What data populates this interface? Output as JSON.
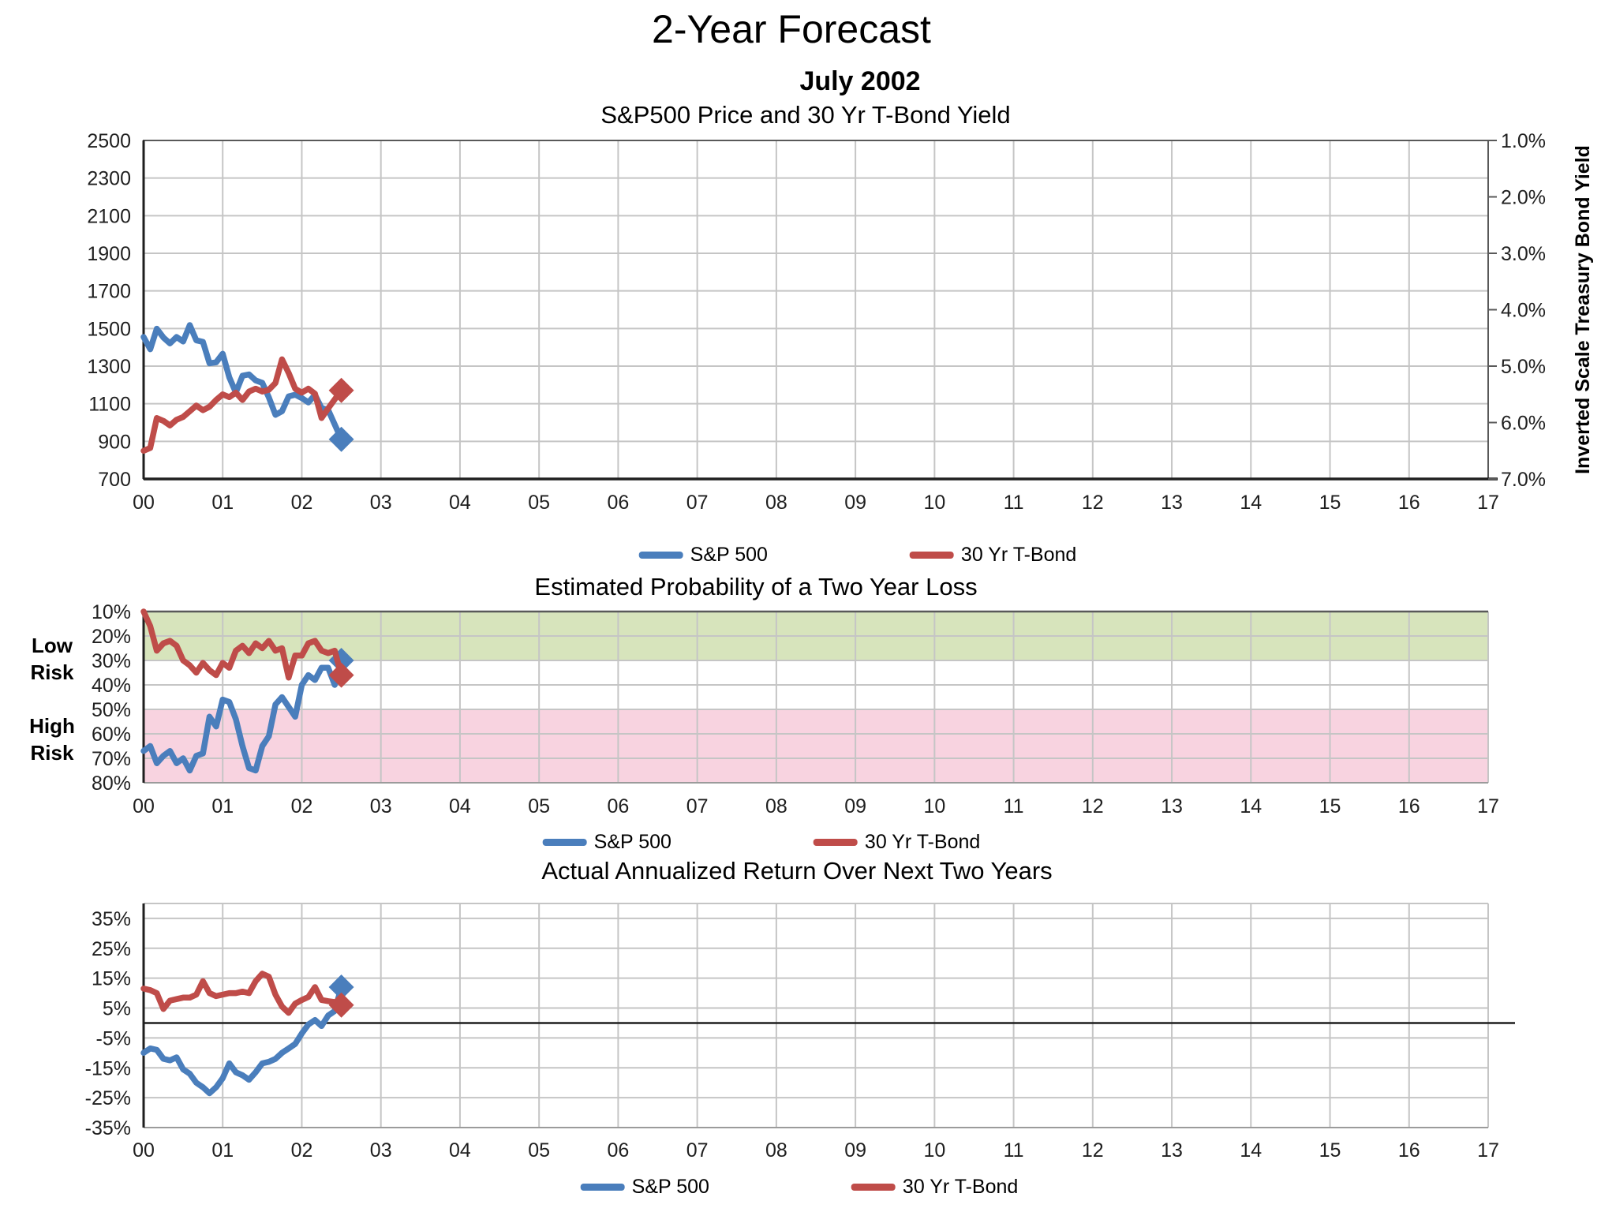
{
  "page": {
    "title": "2-Year Forecast",
    "subtitle": "July 2002"
  },
  "x_axis": {
    "labels": [
      "00",
      "01",
      "02",
      "03",
      "04",
      "05",
      "06",
      "07",
      "08",
      "09",
      "10",
      "11",
      "12",
      "13",
      "14",
      "15",
      "16",
      "17"
    ]
  },
  "chart_data": [
    {
      "id": "price-yield",
      "type": "line",
      "title": "S&P500 Price and 30 Yr T-Bond Yield",
      "x_start": "Jan 2000",
      "x_end": "Jul 2002",
      "left_axis": {
        "range": [
          700,
          2500
        ],
        "tick_labels": [
          "2500",
          "2300",
          "2100",
          "1900",
          "1700",
          "1500",
          "1300",
          "1100",
          "900",
          "700"
        ]
      },
      "right_axis": {
        "title": "Inverted Scale Treasury Bond Yield",
        "inverted": true,
        "range": [
          1.0,
          7.0
        ],
        "tick_labels": [
          "1.0%",
          "2.0%",
          "3.0%",
          "4.0%",
          "5.0%",
          "6.0%",
          "7.0%"
        ]
      },
      "series": [
        {
          "name": "S&P 500",
          "color": "#4a7ebc",
          "axis": "left",
          "end_marker": "diamond",
          "values": [
            1455,
            1390,
            1499,
            1452,
            1421,
            1455,
            1431,
            1518,
            1437,
            1429,
            1315,
            1320,
            1366,
            1240,
            1160,
            1249,
            1256,
            1224,
            1211,
            1134,
            1041,
            1060,
            1139,
            1148,
            1130,
            1107,
            1147,
            1077,
            1067,
            990,
            911
          ]
        },
        {
          "name": "30 Yr T-Bond",
          "color": "#bf4c49",
          "axis": "right",
          "end_marker": "diamond",
          "values": [
            6.5,
            6.45,
            5.92,
            5.97,
            6.05,
            5.95,
            5.9,
            5.8,
            5.7,
            5.78,
            5.72,
            5.6,
            5.5,
            5.55,
            5.47,
            5.6,
            5.45,
            5.4,
            5.45,
            5.42,
            5.3,
            4.88,
            5.12,
            5.4,
            5.47,
            5.4,
            5.49,
            5.92,
            5.75,
            5.59,
            5.43
          ]
        }
      ]
    },
    {
      "id": "loss-probability",
      "type": "line",
      "title": "Estimated Probability of a Two Year Loss",
      "y_axis": {
        "top_value": 10,
        "bottom_value": 80,
        "tick_labels": [
          "10%",
          "20%",
          "30%",
          "40%",
          "50%",
          "60%",
          "70%",
          "80%"
        ]
      },
      "zones": [
        {
          "label": "Low Risk",
          "from": 10,
          "to": 30,
          "color": "#d7e4bc"
        },
        {
          "label": "High Risk",
          "from": 50,
          "to": 80,
          "color": "#f8d3e0"
        }
      ],
      "series": [
        {
          "name": "S&P 500",
          "color": "#4a7ebc",
          "end_marker": "diamond",
          "values": [
            67,
            65,
            72,
            69,
            67,
            72,
            70,
            75,
            69,
            68,
            53,
            57,
            46,
            47,
            54,
            65,
            74,
            75,
            65,
            61,
            48,
            45,
            49,
            53,
            40,
            36,
            38,
            33,
            33,
            40,
            30
          ]
        },
        {
          "name": "30 Yr T-Bond",
          "color": "#bf4c49",
          "end_marker": "diamond",
          "values": [
            10,
            16,
            26,
            23,
            22,
            24,
            30,
            32,
            35,
            31,
            34,
            36,
            31,
            33,
            26,
            24,
            27,
            23,
            25,
            22,
            26,
            25,
            37,
            28,
            28,
            23,
            22,
            26,
            27,
            26,
            36
          ]
        }
      ]
    },
    {
      "id": "actual-return",
      "type": "line",
      "title": "Actual Annualized Return Over Next Two Years",
      "y_axis": {
        "range": [
          -35,
          40
        ],
        "tick_labels": [
          "35%",
          "25%",
          "15%",
          "5%",
          "-5%",
          "-15%",
          "-25%",
          "-35%"
        ],
        "zero_line": true
      },
      "series": [
        {
          "name": "S&P 500",
          "color": "#4a7ebc",
          "end_marker": "diamond",
          "values": [
            -10,
            -8.5,
            -9,
            -12,
            -12.5,
            -11.5,
            -15.5,
            -17,
            -20,
            -21.5,
            -23.5,
            -21.5,
            -18.5,
            -13.5,
            -16.5,
            -17.5,
            -19,
            -16.5,
            -13.5,
            -13,
            -12,
            -10,
            -8.5,
            -7,
            -3.5,
            -0.5,
            1,
            -1,
            2.5,
            4,
            12
          ]
        },
        {
          "name": "30 Yr T-Bond",
          "color": "#bf4c49",
          "end_marker": "diamond",
          "values": [
            11.5,
            11,
            10,
            4.7,
            7.5,
            8,
            8.5,
            8.5,
            9.5,
            14,
            10,
            9,
            9.5,
            10,
            10,
            10.5,
            10,
            14,
            16.5,
            15.5,
            9.5,
            5.5,
            3.4,
            6.5,
            7.7,
            8.7,
            12,
            7.7,
            7.3,
            7,
            6
          ]
        }
      ]
    }
  ]
}
